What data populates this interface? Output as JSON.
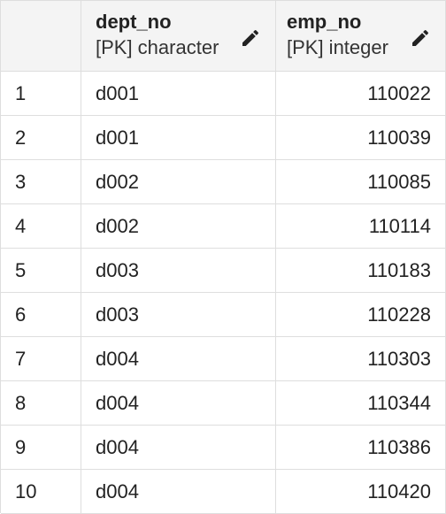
{
  "columns": [
    {
      "name": "dept_no",
      "type": "[PK] character"
    },
    {
      "name": "emp_no",
      "type": "[PK] integer"
    }
  ],
  "icons": {
    "edit": "pencil-icon"
  },
  "rows": [
    {
      "num": "1",
      "dept_no": "d001",
      "emp_no": "110022"
    },
    {
      "num": "2",
      "dept_no": "d001",
      "emp_no": "110039"
    },
    {
      "num": "3",
      "dept_no": "d002",
      "emp_no": "110085"
    },
    {
      "num": "4",
      "dept_no": "d002",
      "emp_no": "110114"
    },
    {
      "num": "5",
      "dept_no": "d003",
      "emp_no": "110183"
    },
    {
      "num": "6",
      "dept_no": "d003",
      "emp_no": "110228"
    },
    {
      "num": "7",
      "dept_no": "d004",
      "emp_no": "110303"
    },
    {
      "num": "8",
      "dept_no": "d004",
      "emp_no": "110344"
    },
    {
      "num": "9",
      "dept_no": "d004",
      "emp_no": "110386"
    },
    {
      "num": "10",
      "dept_no": "d004",
      "emp_no": "110420"
    }
  ]
}
